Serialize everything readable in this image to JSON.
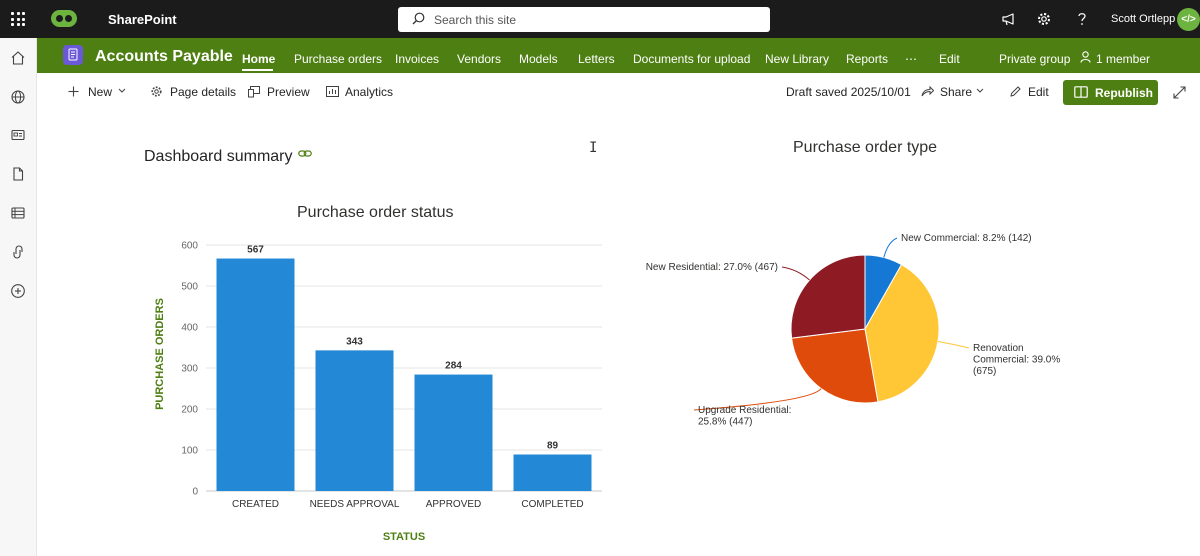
{
  "suite": {
    "app_name": "SharePoint",
    "search_placeholder": "Search this site",
    "user_name": "Scott Ortlepp",
    "icons": [
      "app-launcher-icon",
      "megaphone-icon",
      "gear-icon",
      "help-icon",
      "code-icon"
    ],
    "brand_color": "#1b1b1b",
    "accent": "#6db33f"
  },
  "site": {
    "title": "Accounts Payable",
    "nav": [
      "Home",
      "Purchase orders",
      "Invoices",
      "Vendors",
      "Models",
      "Letters",
      "Documents for upload",
      "New Library",
      "Reports",
      "⋯",
      "Edit"
    ],
    "active_nav": "Home",
    "privacy": "Private group",
    "members": "1 member",
    "header_color": "#4e7f12"
  },
  "rail": {
    "icons": [
      "home-icon",
      "globe-icon",
      "news-icon",
      "file-icon",
      "list-icon",
      "loop-icon",
      "add-icon"
    ]
  },
  "commandbar": {
    "new_label": "New",
    "page_details_label": "Page details",
    "preview_label": "Preview",
    "analytics_label": "Analytics",
    "status": "Draft saved 2025/10/01",
    "share_label": "Share",
    "edit_label": "Edit",
    "republish_label": "Republish"
  },
  "content": {
    "section_title": "Dashboard summary"
  },
  "chart_data": [
    {
      "type": "bar",
      "title": "Purchase order status",
      "categories": [
        "CREATED",
        "NEEDS APPROVAL",
        "APPROVED",
        "COMPLETED"
      ],
      "values": [
        567,
        343,
        284,
        89
      ],
      "xlabel": "STATUS",
      "ylabel": "PURCHASE ORDERS",
      "ylim": [
        0,
        600
      ],
      "yticks": [
        0,
        100,
        200,
        300,
        400,
        500,
        600
      ],
      "data_labels": true,
      "grid": true,
      "bar_color": "#2389d6",
      "axis_label_color": "#4e7f12"
    },
    {
      "type": "pie",
      "title": "Purchase order type",
      "slices": [
        {
          "label": "New Commercial: 8.2% (142)",
          "value": 142,
          "color": "#1478d4"
        },
        {
          "label": "Renovation Commercial: 39.0% (675)",
          "value": 675,
          "color": "#ffc736"
        },
        {
          "label": "Upgrade Residential: 25.8% (447)",
          "value": 447,
          "color": "#de4b0a"
        },
        {
          "label": "New Residential: 27.0% (467)",
          "value": 467,
          "color": "#8e1b24"
        }
      ]
    }
  ]
}
